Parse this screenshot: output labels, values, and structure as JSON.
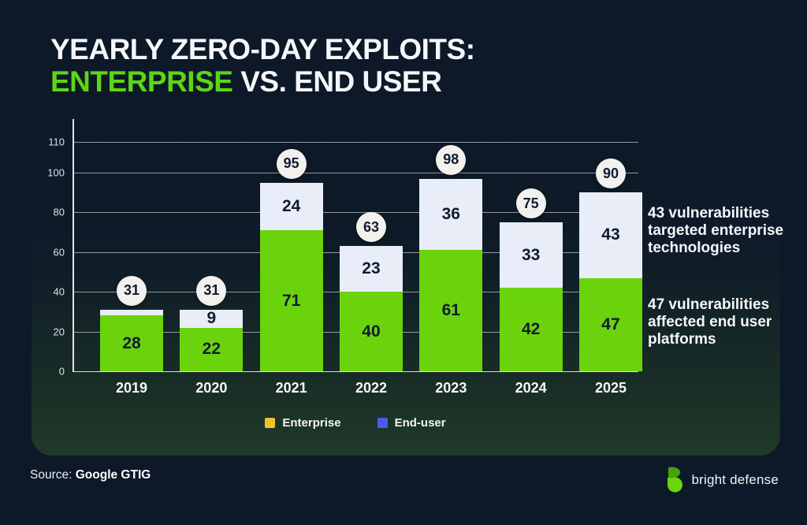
{
  "title": {
    "line1": "YEARLY ZERO-DAY EXPLOITS:",
    "line2_green": "ENTERPRISE",
    "line2_white": " VS. END USER"
  },
  "colors": {
    "background": "#0d1828",
    "panel_bottom": "#203a2a",
    "title_green": "#5cd615",
    "bar_green": "#6bd30c",
    "bar_white": "#e9edf8",
    "badge_bg": "#f2f1ee",
    "number_navy": "#0e1c30",
    "legend_enterprise": "#f0c32e",
    "legend_enduser": "#4a5bf0",
    "logo_green_light": "#6bd60e",
    "logo_green_dark": "#46a30c"
  },
  "chart_data": {
    "type": "bar",
    "stacked": true,
    "title": "Yearly zero-day exploits: Enterprise vs. end user",
    "categories": [
      "2019",
      "2020",
      "2021",
      "2022",
      "2023",
      "2024",
      "2025"
    ],
    "series": [
      {
        "name": "bottom-green-segment",
        "color": "#6bd30c",
        "values": [
          28,
          22,
          71,
          40,
          61,
          42,
          47
        ],
        "labels": [
          "28",
          "22",
          "71",
          "40",
          "61",
          "42",
          "47"
        ]
      },
      {
        "name": "top-white-segment",
        "color": "#e9edf8",
        "values": [
          3,
          9,
          24,
          23,
          36,
          33,
          43
        ],
        "labels": [
          "",
          "9",
          "24",
          "23",
          "36",
          "33",
          "43"
        ]
      }
    ],
    "totals": [
      "31",
      "31",
      "95",
      "63",
      "98",
      "75",
      "90"
    ],
    "y_axis": {
      "ticks": [
        0,
        20,
        40,
        60,
        80,
        100,
        110
      ],
      "range": [
        0,
        116
      ],
      "grid": true
    },
    "legend": [
      {
        "label": "Enterprise",
        "color": "#f0c32e"
      },
      {
        "label": "End-user",
        "color": "#4a5bf0"
      }
    ],
    "legend_position": "bottom-center"
  },
  "annotations": {
    "enterprise": "43 vulnerabilities targeted enterprise technologies",
    "enduser": "47 vulnerabilities affected end user platforms"
  },
  "footer": {
    "source_prefix": "Source: ",
    "source_name": "Google GTIG",
    "brand_name": "bright defense"
  }
}
